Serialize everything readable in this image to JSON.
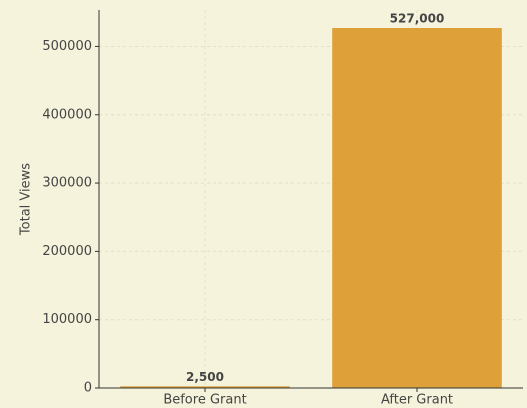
{
  "chart_data": {
    "type": "bar",
    "categories": [
      "Before Grant",
      "After Grant"
    ],
    "values": [
      2500,
      527000
    ],
    "value_labels": [
      "2,500",
      "527,000"
    ],
    "color": "#dea038",
    "ylabel": "Total Views",
    "ylim": [
      0,
      553350
    ],
    "yticks": [
      0,
      100000,
      200000,
      300000,
      400000,
      500000
    ],
    "grid": true
  }
}
